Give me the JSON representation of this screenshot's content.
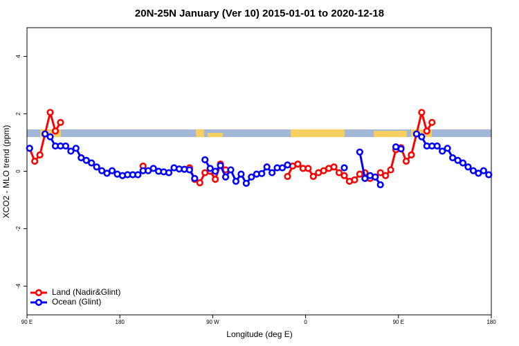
{
  "chart_data": {
    "type": "line",
    "title": "20N-25N January (Ver 10)   2015-01-01 to 2020-12-18",
    "x_label": "Longitude (deg E)",
    "y_label": "XCO2 - MLO trend (ppm)",
    "xlim": [
      90,
      540
    ],
    "ylim": [
      -5,
      5
    ],
    "xticks": [
      {
        "value": 90,
        "label": "90 E"
      },
      180,
      {
        "value": 270,
        "label": "90 W"
      },
      {
        "value": 360,
        "label": "0"
      },
      {
        "value": 450,
        "label": "90 E"
      },
      {
        "value": 540,
        "label": "180"
      }
    ],
    "yticks": [
      -4,
      -2,
      0,
      2,
      4
    ],
    "legend": "bottom-left",
    "x": [
      92.5,
      97.5,
      102.5,
      107.5,
      112.5,
      117.5,
      122.5,
      127.5,
      132.5,
      137.5,
      142.5,
      147.5,
      152.5,
      157.5,
      162.5,
      167.5,
      172.5,
      177.5,
      182.5,
      187.5,
      192.5,
      197.5,
      202.5,
      207.5,
      212.5,
      217.5,
      222.5,
      227.5,
      232.5,
      237.5,
      242.5,
      247.5,
      252.5,
      257.5,
      262.5,
      267.5,
      272.5,
      277.5,
      282.5,
      287.5,
      292.5,
      297.5,
      302.5,
      307.5,
      312.5,
      317.5,
      322.5,
      327.5,
      332.5,
      337.5,
      342.5,
      347.5,
      352.5,
      357.5,
      362.5,
      367.5,
      372.5,
      377.5,
      382.5,
      387.5,
      392.5,
      397.5,
      402.5,
      407.5,
      412.5,
      417.5,
      422.5,
      427.5,
      432.5,
      437.5,
      442.5,
      447.5,
      452.5,
      457.5,
      462.5,
      467.5,
      472.5,
      477.5,
      482.5,
      487.5,
      492.5,
      497.5,
      502.5,
      507.5,
      512.5,
      517.5,
      522.5,
      527.5,
      532.5,
      537.5
    ],
    "series": [
      {
        "name": "Land (Nadir&Glint)",
        "color": "#ff0000",
        "values": [
          0.8,
          0.35,
          0.57,
          1.3,
          2.05,
          1.4,
          1.7,
          null,
          null,
          null,
          null,
          null,
          null,
          null,
          null,
          null,
          null,
          null,
          null,
          null,
          null,
          null,
          0.18,
          null,
          null,
          null,
          null,
          null,
          null,
          null,
          null,
          0.12,
          -0.28,
          -0.4,
          -0.05,
          0.0,
          -0.28,
          0.25,
          0.05,
          null,
          null,
          null,
          null,
          null,
          null,
          null,
          null,
          null,
          null,
          null,
          -0.18,
          0.18,
          0.25,
          0.1,
          0.1,
          -0.18,
          -0.05,
          0.02,
          0.1,
          0.15,
          -0.05,
          -0.15,
          -0.35,
          -0.3,
          -0.1,
          -0.05,
          -0.25,
          -0.2,
          -0.05,
          -0.15,
          0.05,
          0.75,
          0.82,
          0.35,
          0.57,
          1.3,
          2.05,
          1.4,
          1.7,
          null,
          null,
          null,
          null,
          null,
          null,
          null,
          null,
          null,
          null,
          null
        ]
      },
      {
        "name": "Ocean (Glint)",
        "color": "#0000ff",
        "values": [
          0.8,
          null,
          null,
          1.3,
          1.2,
          0.88,
          0.88,
          0.88,
          0.7,
          0.8,
          0.47,
          0.38,
          0.29,
          0.15,
          0.02,
          -0.07,
          0.02,
          -0.1,
          -0.15,
          -0.12,
          -0.12,
          -0.12,
          0.02,
          0.02,
          0.1,
          0.0,
          -0.02,
          -0.05,
          0.12,
          0.08,
          0.07,
          0.05,
          -0.25,
          null,
          0.4,
          0.1,
          0.0,
          0.2,
          -0.2,
          0.05,
          -0.35,
          -0.1,
          -0.42,
          -0.2,
          -0.1,
          -0.08,
          0.15,
          -0.05,
          0.12,
          0.12,
          0.22,
          null,
          null,
          null,
          null,
          null,
          null,
          null,
          null,
          null,
          null,
          0.12,
          null,
          null,
          0.67,
          -0.25,
          -0.15,
          -0.2,
          -0.47,
          null,
          null,
          0.85,
          0.78,
          null,
          null,
          1.3,
          1.2,
          0.88,
          0.88,
          0.88,
          0.7,
          0.8,
          0.47,
          0.38,
          0.29,
          0.15,
          0.02,
          -0.07,
          0.02,
          -0.12
        ]
      }
    ]
  }
}
